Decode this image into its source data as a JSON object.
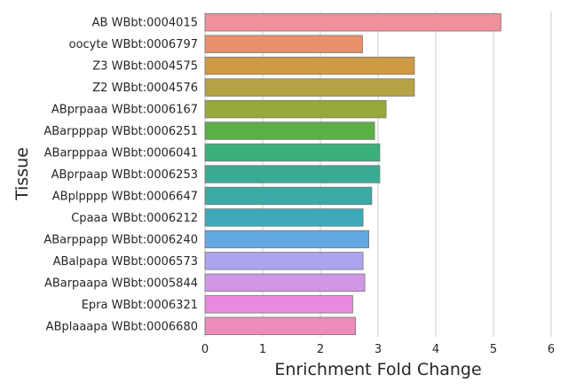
{
  "chart_data": {
    "type": "bar",
    "orientation": "horizontal",
    "xlabel": "Enrichment Fold Change",
    "ylabel": "Tissue",
    "xlim": [
      0,
      6
    ],
    "xticks": [
      "0",
      "1",
      "2",
      "3",
      "4",
      "5",
      "6"
    ],
    "grid": "vertical",
    "categories": [
      "AB WBbt:0004015",
      "oocyte WBbt:0006797",
      "Z3 WBbt:0004575",
      "Z2 WBbt:0004576",
      "ABprpaaa WBbt:0006167",
      "ABarpppap WBbt:0006251",
      "ABarpppaa WBbt:0006041",
      "ABprpaap WBbt:0006253",
      "ABplpppp WBbt:0006647",
      "Cpaaa WBbt:0006212",
      "ABarppapp WBbt:0006240",
      "ABalpapa WBbt:0006573",
      "ABarpaapa WBbt:0005844",
      "Epra WBbt:0006321",
      "ABplaaapa WBbt:0006680"
    ],
    "values": [
      5.13,
      2.73,
      3.63,
      3.63,
      3.14,
      2.94,
      3.03,
      3.03,
      2.89,
      2.74,
      2.84,
      2.74,
      2.77,
      2.56,
      2.61
    ],
    "colors": [
      "#f0909a",
      "#e8906c",
      "#cf9a45",
      "#b5a244",
      "#97a93b",
      "#5aaf45",
      "#3bb07c",
      "#3aab93",
      "#3aaba3",
      "#3ea9b8",
      "#62a8e1",
      "#aba5ee",
      "#cf97e6",
      "#ea89e0",
      "#ee8bba"
    ]
  }
}
